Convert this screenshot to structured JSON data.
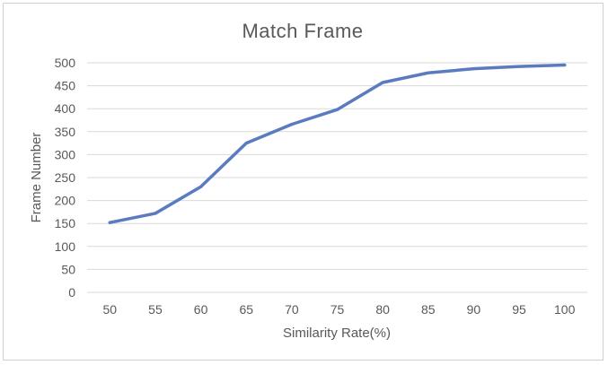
{
  "chart_data": {
    "type": "line",
    "title": "Match Frame",
    "xlabel": "Similarity Rate(%)",
    "ylabel": "Frame Number",
    "x": [
      50,
      55,
      60,
      65,
      70,
      75,
      80,
      85,
      90,
      95,
      100
    ],
    "series": [
      {
        "values": [
          152,
          172,
          230,
          325,
          366,
          398,
          457,
          478,
          487,
          492,
          495
        ]
      }
    ],
    "ylim": [
      0,
      500
    ],
    "yticks": [
      0,
      50,
      100,
      150,
      200,
      250,
      300,
      350,
      400,
      450,
      500
    ],
    "grid": true,
    "legend": "none",
    "line_color": "#5B7BC0"
  }
}
